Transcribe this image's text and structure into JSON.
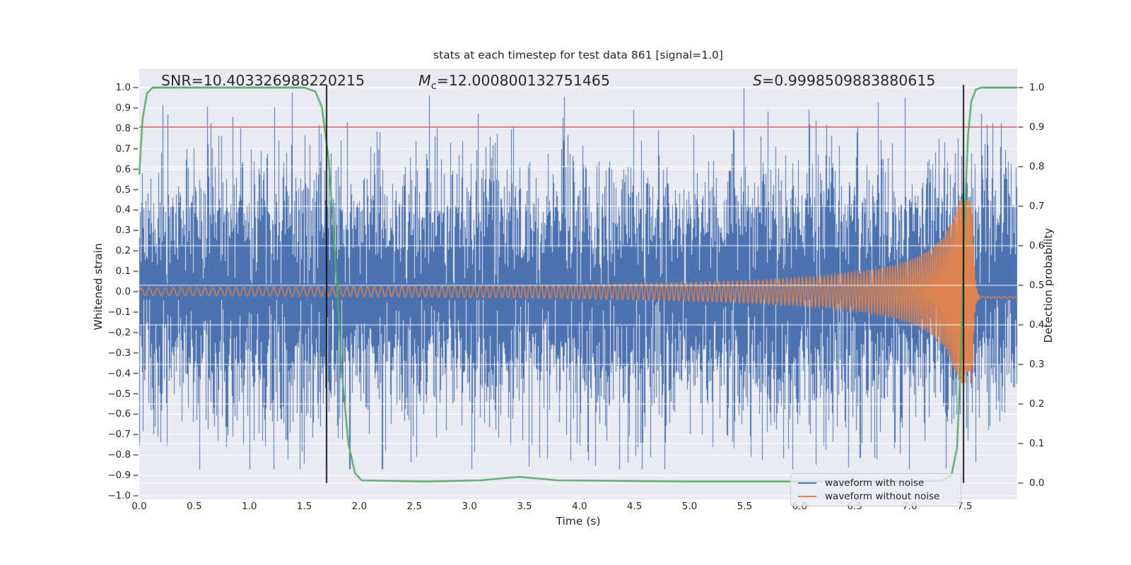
{
  "figure": {
    "title": "stats at each timestep for test data 861 [signal=1.0]",
    "annotations": {
      "snr": "SNR=10.403326988220215",
      "mc_symbol": "M",
      "mc_sub": "c",
      "mc_value": "=12.000800132751465",
      "s_symbol": "S",
      "s_value": "=0.9998509883880615"
    }
  },
  "chart_data": {
    "type": "line",
    "title": "stats at each timestep for test data 861 [signal=1.0]",
    "xlabel": "Time (s)",
    "ylabel_left": "Whitened strain",
    "ylabel_right": "Detection probability",
    "xlim": [
      0.0,
      7.98
    ],
    "ylim_left": [
      -1.0,
      1.0
    ],
    "ylim_right": [
      0.0,
      1.0
    ],
    "grid": "on",
    "x_ticks": {
      "values": [
        0.0,
        0.5,
        1.0,
        1.5,
        2.0,
        2.5,
        3.0,
        3.5,
        4.0,
        4.5,
        5.0,
        5.5,
        6.0,
        6.5,
        7.0,
        7.5
      ],
      "labels": [
        "0.0",
        "0.5",
        "1.0",
        "1.5",
        "2.0",
        "2.5",
        "3.0",
        "3.5",
        "4.0",
        "4.5",
        "5.0",
        "5.5",
        "6.0",
        "6.5",
        "7.0",
        "7.5"
      ]
    },
    "y_ticks_left": {
      "values": [
        1.0,
        0.9,
        0.8,
        0.7,
        0.6,
        0.5,
        0.4,
        0.3,
        0.2,
        0.1,
        0.0,
        -0.1,
        -0.2,
        -0.3,
        -0.4,
        -0.5,
        -0.6,
        -0.7,
        -0.8,
        -0.9,
        -1.0
      ],
      "labels": [
        "1.0",
        "0.9",
        "0.8",
        "0.7",
        "0.6",
        "0.5",
        "0.4",
        "0.3",
        "0.2",
        "0.1",
        "0.0",
        "−0.1",
        "−0.2",
        "−0.3",
        "−0.4",
        "−0.5",
        "−0.6",
        "−0.7",
        "−0.8",
        "−0.9",
        "−1.0"
      ]
    },
    "y_ticks_right": {
      "values": [
        1.0,
        0.9,
        0.8,
        0.7,
        0.6,
        0.5,
        0.4,
        0.3,
        0.2,
        0.1,
        0.0
      ],
      "labels": [
        "1.0",
        "0.9",
        "0.8",
        "0.7",
        "0.6",
        "0.5",
        "0.4",
        "0.3",
        "0.2",
        "0.1",
        "0.0"
      ]
    },
    "colors": {
      "plot_background": "#eaeaf2",
      "grid": "#ffffff",
      "noise_waveform": "#4c72b0",
      "clean_waveform": "#dd8452",
      "detection_probability": "#55a868",
      "threshold_line": "#c44e52",
      "event_lines": "#0a0a0a",
      "text": "#262626"
    },
    "series": [
      {
        "name": "waveform with noise",
        "type": "noise_band",
        "color": "#4c72b0",
        "sigma": 0.3,
        "samples_per_column": 6,
        "clip_top": 1.0,
        "clip_bottom": -0.87,
        "seed": 861
      },
      {
        "name": "waveform without noise",
        "type": "chirp",
        "color": "#dd8452",
        "amp_start": 0.0185,
        "amp_exponent": 0.85,
        "amp_ref_time": 7.62,
        "amp_cap": 0.45,
        "freq_start_hz": 13.5,
        "freq_exponent": 0.5,
        "freq_ref_time": 7.67,
        "merger_time": 7.57,
        "ringdown_tau": 0.015,
        "ringdown_freq_hz": 95,
        "tail_level": -0.028,
        "tail_start_time": 7.63
      },
      {
        "name": "detection probability",
        "type": "prob_line",
        "axis": "right",
        "color": "#55a868",
        "points": [
          [
            0.0,
            0.78
          ],
          [
            0.03,
            0.92
          ],
          [
            0.07,
            0.985
          ],
          [
            0.12,
            1.0
          ],
          [
            1.5,
            1.0
          ],
          [
            1.6,
            0.99
          ],
          [
            1.66,
            0.95
          ],
          [
            1.72,
            0.82
          ],
          [
            1.76,
            0.66
          ],
          [
            1.8,
            0.48
          ],
          [
            1.84,
            0.28
          ],
          [
            1.9,
            0.1
          ],
          [
            1.96,
            0.025
          ],
          [
            2.02,
            0.007
          ],
          [
            2.6,
            0.004
          ],
          [
            3.1,
            0.007
          ],
          [
            3.45,
            0.016
          ],
          [
            3.8,
            0.007
          ],
          [
            5.0,
            0.004
          ],
          [
            6.5,
            0.004
          ],
          [
            7.1,
            0.004
          ],
          [
            7.3,
            0.006
          ],
          [
            7.38,
            0.02
          ],
          [
            7.43,
            0.09
          ],
          [
            7.47,
            0.35
          ],
          [
            7.5,
            0.68
          ],
          [
            7.53,
            0.88
          ],
          [
            7.56,
            0.965
          ],
          [
            7.6,
            0.995
          ],
          [
            7.65,
            1.0
          ],
          [
            7.98,
            1.0
          ]
        ]
      }
    ],
    "threshold_line": {
      "axis": "right",
      "value": 0.9,
      "color": "#c44e52"
    },
    "event_vlines": {
      "times": [
        1.702,
        7.489
      ],
      "color": "#0a0a0a"
    },
    "legend": {
      "position": "lower right",
      "entries": [
        {
          "label": "waveform with noise",
          "color": "#4c72b0"
        },
        {
          "label": "waveform without noise",
          "color": "#dd8452"
        }
      ]
    }
  }
}
